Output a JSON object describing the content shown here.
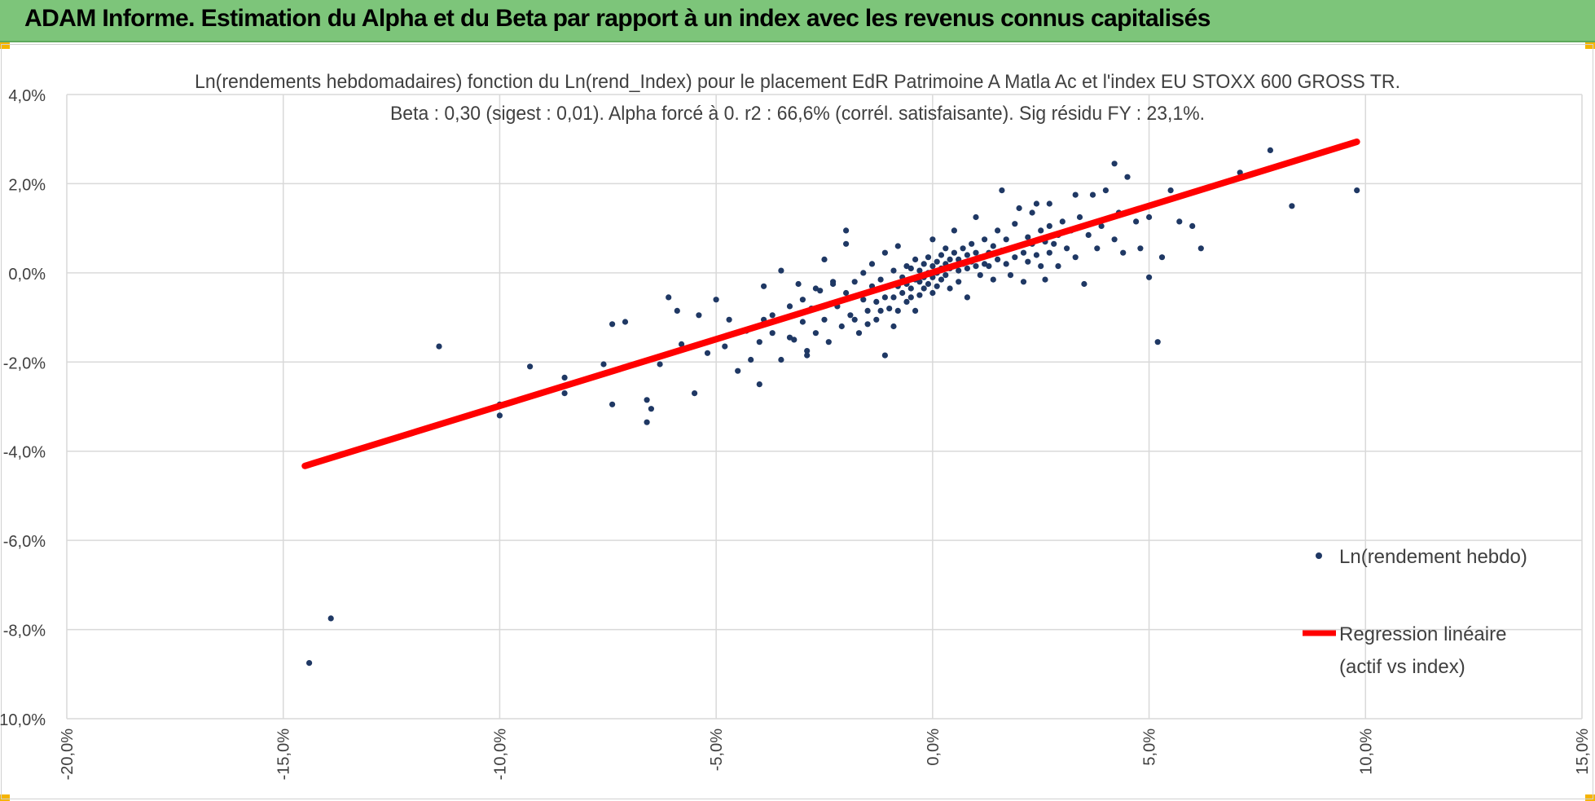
{
  "header": {
    "title": "ADAM Informe. Estimation du Alpha et du Beta par rapport à un index avec les revenus connus capitalisés"
  },
  "colors": {
    "header_bg": "#7dc57a",
    "points": "#1f3864",
    "regression": "#ff0000",
    "grid": "#d9d9d9",
    "corner_marks": "#f5b400"
  },
  "chart_data": {
    "type": "scatter",
    "title": "Ln(rendements hebdomadaires) fonction du Ln(rend_Index) pour le placement EdR Patrimoine A Matla Ac et l'index EU STOXX 600 GROSS TR.",
    "subtitle": "Beta : 0,30 (sigest : 0,01).  Alpha forcé à 0. r2 : 66,6% (corrél. satisfaisante). Sig résidu FY : 23,1%.",
    "xlim": [
      -0.2,
      0.15
    ],
    "ylim": [
      -0.1,
      0.04
    ],
    "x_ticks": [
      -0.2,
      -0.15,
      -0.1,
      -0.05,
      0.0,
      0.05,
      0.1,
      0.15
    ],
    "x_tick_labels": [
      "-20,0%",
      "-15,0%",
      "-10,0%",
      "-5,0%",
      "0,0%",
      "5,0%",
      "10,0%",
      "15,0%"
    ],
    "y_ticks": [
      0.04,
      0.02,
      0.0,
      -0.02,
      -0.04,
      -0.06,
      -0.08,
      -0.1
    ],
    "y_tick_labels": [
      "4,0%",
      "2,0%",
      "0,0%",
      "-2,0%",
      "-4,0%",
      "-6,0%",
      "-8,0%",
      "-10,0%"
    ],
    "grid": true,
    "legend_position": "right",
    "series": [
      {
        "name": "Ln(rendement hebdo)",
        "kind": "scatter",
        "points": [
          [
            -0.144,
            -0.0875
          ],
          [
            -0.139,
            -0.0775
          ],
          [
            -0.114,
            -0.0165
          ],
          [
            -0.1,
            -0.0295
          ],
          [
            -0.1,
            -0.032
          ],
          [
            -0.093,
            -0.021
          ],
          [
            -0.085,
            -0.0235
          ],
          [
            -0.085,
            -0.027
          ],
          [
            -0.076,
            -0.0205
          ],
          [
            -0.074,
            -0.0295
          ],
          [
            -0.074,
            -0.0115
          ],
          [
            -0.071,
            -0.011
          ],
          [
            -0.066,
            -0.0335
          ],
          [
            -0.065,
            -0.0305
          ],
          [
            -0.066,
            -0.0285
          ],
          [
            -0.061,
            -0.0055
          ],
          [
            -0.063,
            -0.0205
          ],
          [
            -0.059,
            -0.0085
          ],
          [
            -0.058,
            -0.016
          ],
          [
            -0.055,
            -0.027
          ],
          [
            -0.054,
            -0.0095
          ],
          [
            -0.052,
            -0.018
          ],
          [
            -0.05,
            -0.006
          ],
          [
            -0.048,
            -0.0165
          ],
          [
            -0.047,
            -0.0105
          ],
          [
            -0.045,
            -0.022
          ],
          [
            -0.043,
            -0.013
          ],
          [
            -0.042,
            -0.0195
          ],
          [
            -0.04,
            -0.025
          ],
          [
            -0.04,
            -0.0155
          ],
          [
            -0.039,
            -0.0105
          ],
          [
            -0.039,
            -0.003
          ],
          [
            -0.037,
            -0.0135
          ],
          [
            -0.035,
            -0.0195
          ],
          [
            -0.035,
            0.0005
          ],
          [
            -0.033,
            -0.0075
          ],
          [
            -0.032,
            -0.015
          ],
          [
            -0.031,
            -0.0025
          ],
          [
            -0.03,
            -0.006
          ],
          [
            -0.03,
            -0.011
          ],
          [
            -0.029,
            -0.0185
          ],
          [
            -0.028,
            -0.008
          ],
          [
            -0.027,
            -0.0135
          ],
          [
            -0.027,
            -0.0035
          ],
          [
            -0.026,
            -0.004
          ],
          [
            -0.025,
            -0.0105
          ],
          [
            -0.024,
            -0.0155
          ],
          [
            -0.023,
            -0.002
          ],
          [
            -0.022,
            -0.0075
          ],
          [
            -0.021,
            -0.012
          ],
          [
            -0.02,
            -0.0045
          ],
          [
            -0.02,
            0.0065
          ],
          [
            -0.019,
            -0.0095
          ],
          [
            -0.018,
            -0.002
          ],
          [
            -0.017,
            -0.0135
          ],
          [
            -0.016,
            -0.006
          ],
          [
            -0.016,
            0.0
          ],
          [
            -0.015,
            -0.0085
          ],
          [
            -0.015,
            -0.0115
          ],
          [
            -0.014,
            -0.003
          ],
          [
            -0.014,
            0.002
          ],
          [
            -0.013,
            -0.0065
          ],
          [
            -0.013,
            -0.0105
          ],
          [
            -0.012,
            -0.0015
          ],
          [
            -0.011,
            -0.0055
          ],
          [
            -0.011,
            -0.0185
          ],
          [
            -0.011,
            0.0045
          ],
          [
            -0.01,
            -0.008
          ],
          [
            -0.01,
            -0.003
          ],
          [
            -0.009,
            0.0005
          ],
          [
            -0.009,
            -0.0055
          ],
          [
            -0.009,
            -0.012
          ],
          [
            -0.008,
            -0.003
          ],
          [
            -0.008,
            0.006
          ],
          [
            -0.008,
            -0.0085
          ],
          [
            -0.007,
            -0.001
          ],
          [
            -0.007,
            -0.0045
          ],
          [
            -0.006,
            -0.0065
          ],
          [
            -0.006,
            0.0015
          ],
          [
            -0.006,
            -0.0025
          ],
          [
            -0.005,
            -0.0035
          ],
          [
            -0.005,
            0.001
          ],
          [
            -0.005,
            -0.0055
          ],
          [
            -0.004,
            -0.0015
          ],
          [
            -0.004,
            0.003
          ],
          [
            -0.004,
            -0.0085
          ],
          [
            -0.003,
            -0.002
          ],
          [
            -0.003,
            0.0005
          ],
          [
            -0.003,
            -0.005
          ],
          [
            -0.002,
            -0.001
          ],
          [
            -0.002,
            0.002
          ],
          [
            -0.002,
            -0.0035
          ],
          [
            -0.001,
            0.0
          ],
          [
            -0.001,
            -0.0025
          ],
          [
            -0.001,
            0.0035
          ],
          [
            0.0,
            -0.001
          ],
          [
            0.0,
            0.0015
          ],
          [
            0.0,
            -0.0045
          ],
          [
            0.0,
            0.0075
          ],
          [
            0.001,
            0.0
          ],
          [
            0.001,
            0.0025
          ],
          [
            0.001,
            -0.003
          ],
          [
            0.002,
            0.001
          ],
          [
            0.002,
            0.004
          ],
          [
            0.002,
            -0.0015
          ],
          [
            0.003,
            0.002
          ],
          [
            0.003,
            -0.0005
          ],
          [
            0.003,
            0.0055
          ],
          [
            0.004,
            0.001
          ],
          [
            0.004,
            0.003
          ],
          [
            0.004,
            -0.0035
          ],
          [
            0.005,
            0.0015
          ],
          [
            0.005,
            0.0045
          ],
          [
            0.005,
            0.0095
          ],
          [
            0.006,
            0.0005
          ],
          [
            0.006,
            0.003
          ],
          [
            0.006,
            -0.002
          ],
          [
            0.007,
            0.002
          ],
          [
            0.007,
            0.0055
          ],
          [
            0.008,
            0.001
          ],
          [
            0.008,
            0.004
          ],
          [
            0.008,
            -0.0055
          ],
          [
            0.009,
            0.0025
          ],
          [
            0.009,
            0.0065
          ],
          [
            0.01,
            0.0015
          ],
          [
            0.01,
            0.0045
          ],
          [
            0.01,
            0.0125
          ],
          [
            0.011,
            0.0035
          ],
          [
            0.011,
            -0.0005
          ],
          [
            0.012,
            0.002
          ],
          [
            0.012,
            0.0075
          ],
          [
            0.013,
            0.0045
          ],
          [
            0.013,
            0.0015
          ],
          [
            0.014,
            0.006
          ],
          [
            0.014,
            -0.0015
          ],
          [
            0.015,
            0.003
          ],
          [
            0.015,
            0.0095
          ],
          [
            0.016,
            0.005
          ],
          [
            0.016,
            0.0185
          ],
          [
            0.017,
            0.002
          ],
          [
            0.017,
            0.0075
          ],
          [
            0.018,
            0.0055
          ],
          [
            0.018,
            -0.0005
          ],
          [
            0.019,
            0.0035
          ],
          [
            0.019,
            0.011
          ],
          [
            0.02,
            0.006
          ],
          [
            0.02,
            0.0145
          ],
          [
            0.021,
            0.0045
          ],
          [
            0.021,
            -0.002
          ],
          [
            0.022,
            0.008
          ],
          [
            0.022,
            0.0025
          ],
          [
            0.023,
            0.0065
          ],
          [
            0.023,
            0.0135
          ],
          [
            0.024,
            0.004
          ],
          [
            0.025,
            0.0095
          ],
          [
            0.025,
            0.0015
          ],
          [
            0.026,
            0.007
          ],
          [
            0.026,
            -0.0015
          ],
          [
            0.027,
            0.0105
          ],
          [
            0.027,
            0.0045
          ],
          [
            0.028,
            0.0065
          ],
          [
            0.029,
            0.0085
          ],
          [
            0.029,
            0.0015
          ],
          [
            0.03,
            0.0115
          ],
          [
            0.031,
            0.0055
          ],
          [
            0.032,
            0.0095
          ],
          [
            0.033,
            0.0035
          ],
          [
            0.034,
            0.0125
          ],
          [
            0.035,
            -0.0025
          ],
          [
            0.036,
            0.0085
          ],
          [
            0.037,
            0.0175
          ],
          [
            0.038,
            0.0055
          ],
          [
            0.039,
            0.0105
          ],
          [
            0.04,
            0.0185
          ],
          [
            0.042,
            0.0075
          ],
          [
            0.043,
            0.0135
          ],
          [
            0.044,
            0.0045
          ],
          [
            0.045,
            0.0215
          ],
          [
            0.047,
            0.0115
          ],
          [
            0.048,
            0.0055
          ],
          [
            0.05,
            0.0125
          ],
          [
            0.052,
            -0.0155
          ],
          [
            0.053,
            0.0035
          ],
          [
            0.055,
            0.0185
          ],
          [
            0.057,
            0.0115
          ],
          [
            0.06,
            0.0105
          ],
          [
            0.062,
            0.0055
          ],
          [
            0.071,
            0.0225
          ],
          [
            0.078,
            0.0275
          ],
          [
            0.083,
            0.015
          ],
          [
            0.098,
            0.0185
          ],
          [
            0.05,
            -0.001
          ],
          [
            0.042,
            0.0245
          ],
          [
            -0.02,
            0.0095
          ],
          [
            -0.025,
            0.003
          ],
          [
            -0.033,
            -0.0145
          ],
          [
            -0.037,
            -0.0095
          ],
          [
            -0.029,
            -0.0175
          ],
          [
            -0.018,
            -0.0105
          ],
          [
            -0.012,
            -0.0085
          ],
          [
            -0.023,
            -0.0025
          ],
          [
            0.033,
            0.0175
          ],
          [
            0.027,
            0.0155
          ],
          [
            0.024,
            0.0155
          ]
        ]
      },
      {
        "name": "Regression linéaire\n(actif vs index)",
        "kind": "line",
        "points": [
          [
            -0.145,
            -0.0433
          ],
          [
            0.098,
            0.0294
          ]
        ],
        "beta": 0.3,
        "alpha": 0
      }
    ]
  }
}
